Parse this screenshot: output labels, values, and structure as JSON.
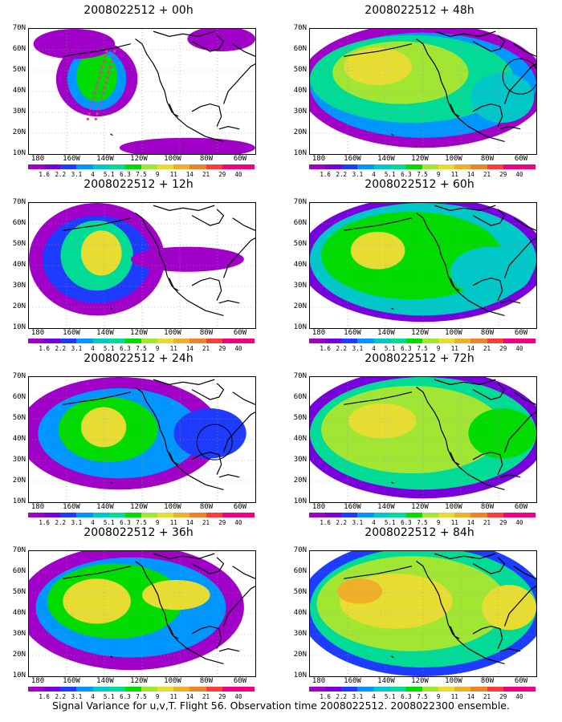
{
  "footer": "Signal Variance for u,v,T. Flight 56. Observation time 2008022512. 2008022300 ensemble.",
  "panels": [
    {
      "title": "2008022512 + 00h"
    },
    {
      "title": "2008022512 + 48h"
    },
    {
      "title": "2008022512 + 12h"
    },
    {
      "title": "2008022512 + 60h"
    },
    {
      "title": "2008022512 + 24h"
    },
    {
      "title": "2008022512 + 72h"
    },
    {
      "title": "2008022512 + 36h"
    },
    {
      "title": "2008022512 + 84h"
    }
  ],
  "lat_labels": [
    "70N",
    "60N",
    "50N",
    "40N",
    "30N",
    "20N",
    "10N"
  ],
  "lon_labels": [
    "180",
    "160W",
    "140W",
    "120W",
    "100W",
    "80W",
    "60W"
  ],
  "colorbar": {
    "values": [
      "1.6",
      "2.2",
      "3.1",
      "4",
      "5.1",
      "6.3",
      "7.5",
      "9",
      "11",
      "14",
      "21",
      "29",
      "40"
    ],
    "colors": [
      "#a000c8",
      "#7800dc",
      "#1e3cff",
      "#0096ff",
      "#00c8c8",
      "#00dc96",
      "#00dc00",
      "#a0e632",
      "#e6dc32",
      "#f0af28",
      "#f08228",
      "#fa3c3c",
      "#f00082"
    ]
  },
  "color_scale": {
    "white": "#ffffff",
    "flight_track": "#f032a0",
    "coastline": "#000000"
  }
}
